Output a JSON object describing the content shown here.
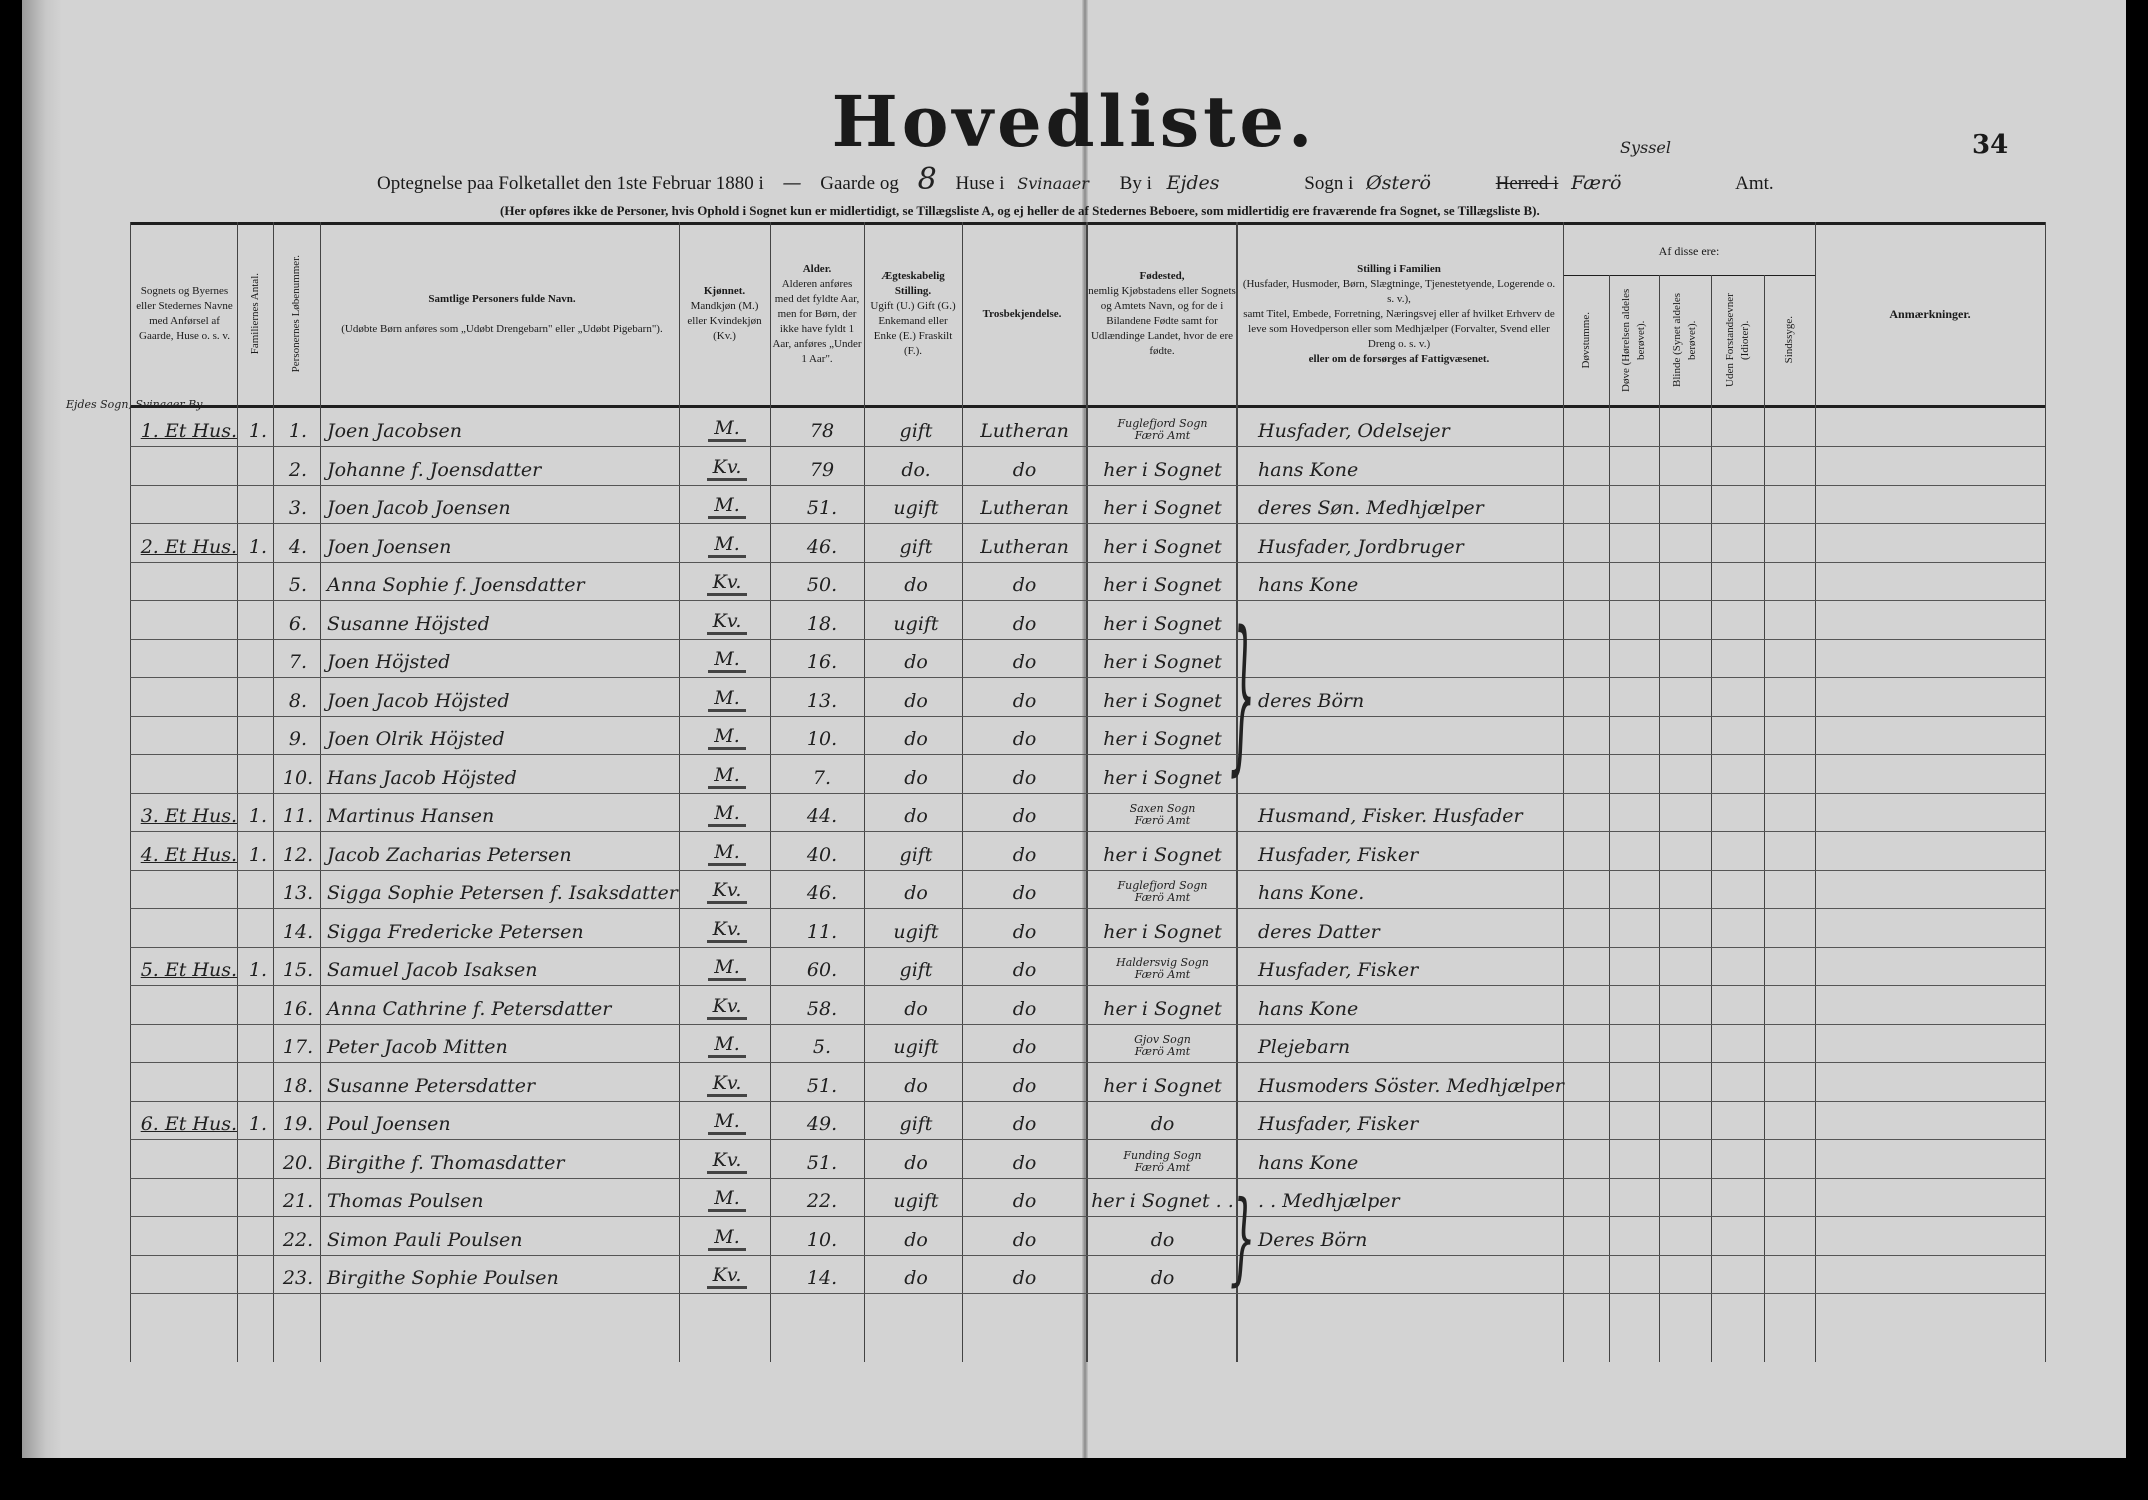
{
  "title": "Hovedliste.",
  "page_number": "34",
  "intro": {
    "part1": "Optegnelse paa Folketallet den 1ste Februar 1880 i",
    "gaarde_value": "—",
    "part2": "Gaarde og",
    "huse_value": "8",
    "part3": "Huse i",
    "by_value": "Svinaaer",
    "part4": "By i",
    "sogn_value": "Ejdes",
    "part5": "Sogn i",
    "herred_value": "Østerö",
    "syssel_note": "Syssel",
    "part6": "Herred i",
    "amt_value": "Færö",
    "part7": "Amt.",
    "note": "(Her opføres ikke de Personer, hvis Ophold i Sognet kun er midlertidigt, se Tillægsliste A, og ej heller de af Stedernes Beboere, som midlertidig ere fraværende fra Sognet, se Tillægsliste B)."
  },
  "columns": {
    "place": "Sognets og Byernes eller Stedernes Navne med Anførsel af Gaarde, Huse o. s. v.",
    "families": "Familiernes Antal.",
    "number": "Personernes Løbenummer.",
    "name_title": "Samtlige Personers fulde Navn.",
    "name_note": "(Udøbte Børn anføres som „Udøbt Drengebarn\" eller „Udøbt Pigebarn\").",
    "sex_title": "Kjønnet.",
    "sex_note": "Mandkjøn (M.) eller Kvindekjøn (Kv.)",
    "age_title": "Alder.",
    "age_note": "Alderen anføres med det fyldte Aar, men for Børn, der ikke have fyldt 1 Aar, anføres „Under 1 Aar\".",
    "marital_title": "Ægteskabelig Stilling.",
    "marital_note": "Ugift (U.) Gift (G.) Enkemand eller Enke (E.) Fraskilt (F.).",
    "religion": "Trosbekjendelse.",
    "birthplace_title": "Fødested,",
    "birthplace_note": "nemlig Kjøbstadens eller Sognets og Amtets Navn, og for de i Bilandene Fødte samt for Udlændinge Landet, hvor de ere fødte.",
    "position_title": "Stilling i Familien",
    "position_note1": "(Husfader, Husmoder, Børn, Slægtninge, Tjenestetyende, Logerende o. s. v.),",
    "position_note2": "samt Titel, Embede, Forretning, Næringsvej eller af hvilket Erhverv de leve som Hovedperson eller som Medhjælper (Forvalter, Svend eller Dreng o. s. v.)",
    "position_note3": "eller om de forsørges af Fattigvæsenet.",
    "of_these": "Af disse ere:",
    "deafmute": "Døvstumme.",
    "deaf": "Døve (Hørelsen aldeles berøvet).",
    "blind": "Blinde (Synet aldeles berøvet).",
    "idiots": "Uden Forstandsevner (Idioter).",
    "insane": "Sindssyge.",
    "remarks": "Anmærkninger."
  },
  "place_heading": "Ejdes Sogn, Svinaaer By",
  "rows": [
    {
      "place": "1. Et Hus.",
      "families": "1.",
      "num": "1.",
      "name": "Joen Jacobsen",
      "sex": "M.",
      "age": "78",
      "marital": "gift",
      "religion": "Lutheran",
      "birthplace": "Fuglefjord Sogn|Færö Amt",
      "position": "Husfader, Odelsejer"
    },
    {
      "place": "",
      "families": "",
      "num": "2.",
      "name": "Johanne f. Joensdatter",
      "sex": "Kv.",
      "age": "79",
      "marital": "do.",
      "religion": "do",
      "birthplace": "her i Sognet",
      "position": "hans Kone"
    },
    {
      "place": "",
      "families": "",
      "num": "3.",
      "name": "Joen Jacob Joensen",
      "sex": "M.",
      "age": "51.",
      "marital": "ugift",
      "religion": "Lutheran",
      "birthplace": "her i Sognet",
      "position": "deres Søn. Medhjælper"
    },
    {
      "place": "2. Et Hus.",
      "families": "1.",
      "num": "4.",
      "name": "Joen Joensen",
      "sex": "M.",
      "age": "46.",
      "marital": "gift",
      "religion": "Lutheran",
      "birthplace": "her i Sognet",
      "position": "Husfader, Jordbruger"
    },
    {
      "place": "",
      "families": "",
      "num": "5.",
      "name": "Anna Sophie f. Joensdatter",
      "sex": "Kv.",
      "age": "50.",
      "marital": "do",
      "religion": "do",
      "birthplace": "her i Sognet",
      "position": "hans Kone"
    },
    {
      "place": "",
      "families": "",
      "num": "6.",
      "name": "Susanne Höjsted",
      "sex": "Kv.",
      "age": "18.",
      "marital": "ugift",
      "religion": "do",
      "birthplace": "her i Sognet",
      "position": ""
    },
    {
      "place": "",
      "families": "",
      "num": "7.",
      "name": "Joen Höjsted",
      "sex": "M.",
      "age": "16.",
      "marital": "do",
      "religion": "do",
      "birthplace": "her i Sognet",
      "position": ""
    },
    {
      "place": "",
      "families": "",
      "num": "8.",
      "name": "Joen Jacob Höjsted",
      "sex": "M.",
      "age": "13.",
      "marital": "do",
      "religion": "do",
      "birthplace": "her i Sognet",
      "position": "deres Börn"
    },
    {
      "place": "",
      "families": "",
      "num": "9.",
      "name": "Joen Olrik Höjsted",
      "sex": "M.",
      "age": "10.",
      "marital": "do",
      "religion": "do",
      "birthplace": "her i Sognet",
      "position": ""
    },
    {
      "place": "",
      "families": "",
      "num": "10.",
      "name": "Hans Jacob Höjsted",
      "sex": "M.",
      "age": "7.",
      "marital": "do",
      "religion": "do",
      "birthplace": "her i Sognet",
      "position": ""
    },
    {
      "place": "3. Et Hus.",
      "families": "1.",
      "num": "11.",
      "name": "Martinus Hansen",
      "sex": "M.",
      "age": "44.",
      "marital": "do",
      "religion": "do",
      "birthplace": "Saxen Sogn|Færö Amt",
      "position": "Husmand, Fisker. Husfader"
    },
    {
      "place": "4. Et Hus.",
      "families": "1.",
      "num": "12.",
      "name": "Jacob Zacharias Petersen",
      "sex": "M.",
      "age": "40.",
      "marital": "gift",
      "religion": "do",
      "birthplace": "her i Sognet",
      "position": "Husfader, Fisker"
    },
    {
      "place": "",
      "families": "",
      "num": "13.",
      "name": "Sigga Sophie Petersen f. Isaksdatter",
      "sex": "Kv.",
      "age": "46.",
      "marital": "do",
      "religion": "do",
      "birthplace": "Fuglefjord Sogn|Færö Amt",
      "position": "hans Kone."
    },
    {
      "place": "",
      "families": "",
      "num": "14.",
      "name": "Sigga Fredericke Petersen",
      "sex": "Kv.",
      "age": "11.",
      "marital": "ugift",
      "religion": "do",
      "birthplace": "her i Sognet",
      "position": "deres Datter"
    },
    {
      "place": "5. Et Hus.",
      "families": "1.",
      "num": "15.",
      "name": "Samuel Jacob Isaksen",
      "sex": "M.",
      "age": "60.",
      "marital": "gift",
      "religion": "do",
      "birthplace": "Haldersvig Sogn|Færö Amt",
      "position": "Husfader, Fisker"
    },
    {
      "place": "",
      "families": "",
      "num": "16.",
      "name": "Anna Cathrine f. Petersdatter",
      "sex": "Kv.",
      "age": "58.",
      "marital": "do",
      "religion": "do",
      "birthplace": "her i Sognet",
      "position": "hans Kone"
    },
    {
      "place": "",
      "families": "",
      "num": "17.",
      "name": "Peter Jacob Mitten",
      "sex": "M.",
      "age": "5.",
      "marital": "ugift",
      "religion": "do",
      "birthplace": "Gjov Sogn|Færö Amt",
      "position": "Plejebarn"
    },
    {
      "place": "",
      "families": "",
      "num": "18.",
      "name": "Susanne Petersdatter",
      "sex": "Kv.",
      "age": "51.",
      "marital": "do",
      "religion": "do",
      "birthplace": "her i Sognet",
      "position": "Husmoders Söster. Medhjælper"
    },
    {
      "place": "6. Et Hus.",
      "families": "1.",
      "num": "19.",
      "name": "Poul Joensen",
      "sex": "M.",
      "age": "49.",
      "marital": "gift",
      "religion": "do",
      "birthplace": "do",
      "position": "Husfader, Fisker"
    },
    {
      "place": "",
      "families": "",
      "num": "20.",
      "name": "Birgithe f. Thomasdatter",
      "sex": "Kv.",
      "age": "51.",
      "marital": "do",
      "religion": "do",
      "birthplace": "Funding Sogn|Færö Amt",
      "position": "hans Kone"
    },
    {
      "place": "",
      "families": "",
      "num": "21.",
      "name": "Thomas Poulsen",
      "sex": "M.",
      "age": "22.",
      "marital": "ugift",
      "religion": "do",
      "birthplace": "her i Sognet . .",
      "position": ". . Medhjælper"
    },
    {
      "place": "",
      "families": "",
      "num": "22.",
      "name": "Simon Pauli Poulsen",
      "sex": "M.",
      "age": "10.",
      "marital": "do",
      "religion": "do",
      "birthplace": "do",
      "position": "Deres Börn"
    },
    {
      "place": "",
      "families": "",
      "num": "23.",
      "name": "Birgithe Sophie Poulsen",
      "sex": "Kv.",
      "age": "14.",
      "marital": "do",
      "religion": "do",
      "birthplace": "do",
      "position": ""
    }
  ]
}
